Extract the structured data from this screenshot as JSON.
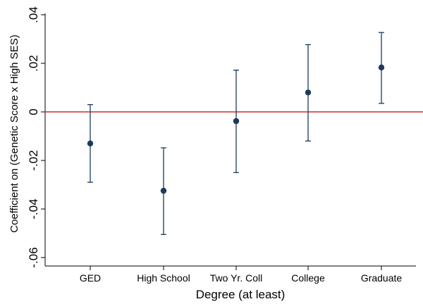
{
  "chart_data": {
    "type": "scatter",
    "subtype": "coefficient-plot-with-confidence-intervals",
    "title": "",
    "xlabel": "Degree (at least)",
    "ylabel": "Coefficient on (Genetic Score x High SES)",
    "categories": [
      "GED",
      "High School",
      "Two Yr. Coll",
      "College",
      "Graduate"
    ],
    "estimates": [
      -0.013,
      -0.0325,
      -0.0038,
      0.008,
      0.0183
    ],
    "ci_lower": [
      -0.029,
      -0.0505,
      -0.025,
      -0.012,
      0.0035
    ],
    "ci_upper": [
      0.003,
      -0.0148,
      0.0172,
      0.0277,
      0.0327
    ],
    "ylim": [
      -0.063,
      0.04
    ],
    "yticks": [
      0.04,
      0.02,
      0,
      -0.02,
      -0.04,
      -0.06
    ],
    "ytick_labels": [
      ".04",
      ".02",
      "0",
      "-.02",
      "-.04",
      "-.06"
    ],
    "reference_line": 0,
    "grid": false,
    "legend": "none",
    "colors": {
      "marker": "#1a3a5c",
      "errorbar": "#1a3a5c",
      "reference_line": "#d62a2a",
      "axis": "#000000"
    }
  }
}
